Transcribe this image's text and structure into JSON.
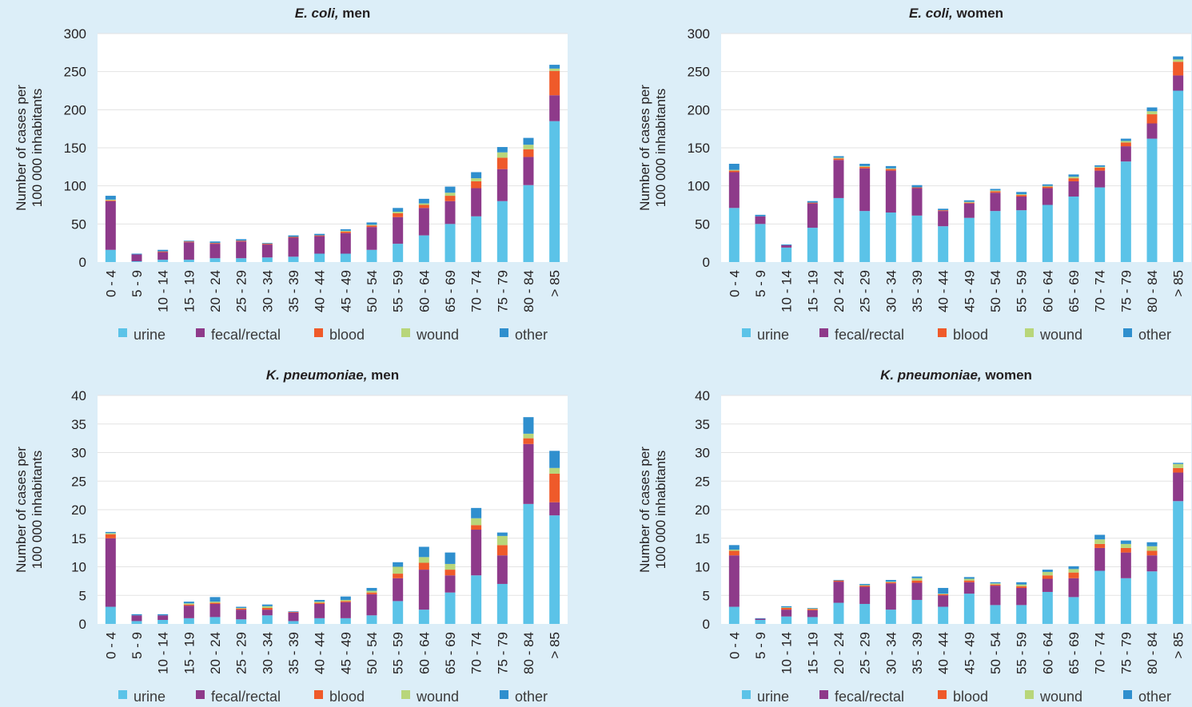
{
  "colors": {
    "urine": "#5bc3e8",
    "fecal_rectal": "#8e3a8a",
    "blood": "#ef5a2a",
    "wound": "#b8d67a",
    "other": "#2f8fce"
  },
  "legend": [
    "urine",
    "fecal/rectal",
    "blood",
    "wound",
    "other"
  ],
  "chart_data": [
    {
      "type": "bar",
      "stacked": true,
      "title_italic": "E. coli,",
      "title_rest": " men",
      "ylabel_line1": "Number of cases per",
      "ylabel_line2": "100 000 inhabitants",
      "ylim": [
        0,
        300
      ],
      "yticks": [
        "0",
        "50",
        "100",
        "150",
        "200",
        "250",
        "300"
      ],
      "categories": [
        "0 - 4",
        "5 - 9",
        "10 - 14",
        "15 - 19",
        "20 - 24",
        "25 - 29",
        "30 - 34",
        "35 - 39",
        "40 - 44",
        "45 - 49",
        "50 - 54",
        "55 - 59",
        "60 - 64",
        "65 - 69",
        "70 - 74",
        "75 - 79",
        "80 - 84",
        "> 85"
      ],
      "series": [
        {
          "name": "urine",
          "values": [
            16,
            1,
            3,
            3,
            5,
            5,
            6,
            7,
            11,
            11,
            16,
            24,
            35,
            50,
            60,
            80,
            101,
            185
          ]
        },
        {
          "name": "fecal/rectal",
          "values": [
            64,
            9,
            10,
            23,
            19,
            22,
            17,
            25,
            23,
            27,
            30,
            35,
            36,
            30,
            37,
            42,
            37,
            34
          ]
        },
        {
          "name": "blood",
          "values": [
            1,
            0,
            1,
            1,
            1,
            1,
            1,
            1,
            1,
            2,
            2,
            5,
            4,
            7,
            9,
            15,
            10,
            32
          ]
        },
        {
          "name": "wound",
          "values": [
            1,
            0,
            0,
            0,
            0,
            0,
            0,
            0,
            0,
            1,
            1,
            2,
            2,
            4,
            4,
            7,
            6,
            3
          ]
        },
        {
          "name": "other",
          "values": [
            5,
            1,
            2,
            1,
            2,
            2,
            1,
            2,
            2,
            2,
            3,
            5,
            6,
            8,
            8,
            7,
            9,
            5
          ]
        }
      ]
    },
    {
      "type": "bar",
      "stacked": true,
      "title_italic": "E. coli,",
      "title_rest": " women",
      "ylabel_line1": "Number of cases per",
      "ylabel_line2": "100 000 inhabitants",
      "ylim": [
        0,
        300
      ],
      "yticks": [
        "0",
        "50",
        "100",
        "150",
        "200",
        "250",
        "300"
      ],
      "categories": [
        "0 - 4",
        "5 - 9",
        "10 - 14",
        "15 - 19",
        "20 - 24",
        "25 - 29",
        "30 - 34",
        "35 - 39",
        "40 - 44",
        "45 - 49",
        "50 - 54",
        "55 - 59",
        "60 - 64",
        "65 - 69",
        "70 - 74",
        "75 - 79",
        "80 - 84",
        "> 85"
      ],
      "series": [
        {
          "name": "urine",
          "values": [
            71,
            50,
            19,
            45,
            84,
            67,
            65,
            61,
            47,
            58,
            67,
            68,
            75,
            86,
            98,
            132,
            162,
            225
          ]
        },
        {
          "name": "fecal/rectal",
          "values": [
            47,
            10,
            3,
            32,
            50,
            56,
            55,
            36,
            20,
            19,
            24,
            18,
            22,
            20,
            22,
            20,
            20,
            20
          ]
        },
        {
          "name": "blood",
          "values": [
            2,
            0,
            0,
            1,
            2,
            2,
            2,
            1,
            1,
            1,
            2,
            2,
            2,
            4,
            4,
            5,
            12,
            18
          ]
        },
        {
          "name": "wound",
          "values": [
            1,
            0,
            0,
            0,
            1,
            1,
            1,
            0,
            0,
            1,
            1,
            1,
            1,
            2,
            1,
            2,
            4,
            3
          ]
        },
        {
          "name": "other",
          "values": [
            8,
            2,
            1,
            2,
            2,
            3,
            3,
            3,
            2,
            2,
            2,
            3,
            2,
            3,
            2,
            3,
            5,
            4
          ]
        }
      ]
    },
    {
      "type": "bar",
      "stacked": true,
      "title_italic": "K. pneumoniae,",
      "title_rest": " men",
      "ylabel_line1": "Number of cases per",
      "ylabel_line2": "100 000 inhabitants",
      "ylim": [
        0,
        40
      ],
      "yticks": [
        "0",
        "5",
        "10",
        "15",
        "20",
        "25",
        "30",
        "35",
        "40"
      ],
      "categories": [
        "0 - 4",
        "5 - 9",
        "10 - 14",
        "15 - 19",
        "20 - 24",
        "25 - 29",
        "30 - 34",
        "35 - 39",
        "40 - 44",
        "45 - 49",
        "50 - 54",
        "55 - 59",
        "60 - 64",
        "65 - 69",
        "70 - 74",
        "75 - 79",
        "80 - 84",
        "> 85"
      ],
      "series": [
        {
          "name": "urine",
          "values": [
            3,
            0.5,
            0.7,
            1,
            1.2,
            0.8,
            1.5,
            0.5,
            1,
            1,
            1.5,
            4,
            2.5,
            5.5,
            8.5,
            7,
            21,
            19
          ]
        },
        {
          "name": "fecal/rectal",
          "values": [
            12,
            1,
            0.8,
            2.2,
            2.3,
            1.7,
            1,
            1.5,
            2.5,
            2.8,
            3.7,
            4,
            7,
            3,
            8,
            5,
            10.5,
            2.3
          ]
        },
        {
          "name": "blood",
          "values": [
            0.7,
            0,
            0,
            0.2,
            0.2,
            0.2,
            0.3,
            0.1,
            0.2,
            0.2,
            0.3,
            0.8,
            1.2,
            1,
            0.8,
            1.8,
            1,
            5
          ]
        },
        {
          "name": "wound",
          "values": [
            0.2,
            0,
            0,
            0.2,
            0.2,
            0.1,
            0.3,
            0,
            0.2,
            0.2,
            0.3,
            1.2,
            1,
            1,
            1.2,
            1.6,
            0.8,
            1
          ]
        },
        {
          "name": "other",
          "values": [
            0.2,
            0.2,
            0.2,
            0.3,
            0.8,
            0.2,
            0.3,
            0.1,
            0.3,
            0.6,
            0.5,
            0.8,
            1.8,
            2,
            1.8,
            0.6,
            2.9,
            3
          ]
        }
      ]
    },
    {
      "type": "bar",
      "stacked": true,
      "title_italic": "K. pneumoniae,",
      "title_rest": " women",
      "ylabel_line1": "Number of cases per",
      "ylabel_line2": "100 000 inhabitants",
      "ylim": [
        0,
        40
      ],
      "yticks": [
        "0",
        "5",
        "10",
        "15",
        "20",
        "25",
        "30",
        "35",
        "40"
      ],
      "categories": [
        "0 - 4",
        "5 - 9",
        "10 - 14",
        "15 - 19",
        "20 - 24",
        "25 - 29",
        "30 - 34",
        "35 - 39",
        "40 - 44",
        "45 - 49",
        "50 - 54",
        "55 - 59",
        "60 - 64",
        "65 - 69",
        "70 - 74",
        "75 - 79",
        "80 - 84",
        "> 85"
      ],
      "series": [
        {
          "name": "urine",
          "values": [
            3,
            0.7,
            1.3,
            1.2,
            3.7,
            3.5,
            2.5,
            4.2,
            3,
            5.3,
            3.3,
            3.3,
            5.6,
            4.7,
            9.3,
            8,
            9.2,
            21.5
          ]
        },
        {
          "name": "fecal/rectal",
          "values": [
            9,
            0.2,
            1.2,
            1.2,
            3.7,
            3,
            4.6,
            3,
            2,
            2,
            3.4,
            3,
            2.3,
            3.3,
            4,
            4.5,
            2.8,
            5
          ]
        },
        {
          "name": "blood",
          "values": [
            0.8,
            0,
            0.3,
            0.2,
            0.2,
            0.2,
            0.2,
            0.4,
            0.2,
            0.3,
            0.2,
            0.3,
            0.6,
            1,
            0.7,
            0.8,
            0.8,
            0.8
          ]
        },
        {
          "name": "wound",
          "values": [
            0.2,
            0,
            0.1,
            0.1,
            0,
            0.1,
            0.1,
            0.4,
            0.1,
            0.3,
            0.2,
            0.3,
            0.6,
            0.6,
            0.8,
            0.7,
            0.8,
            0.7
          ]
        },
        {
          "name": "other",
          "values": [
            0.8,
            0.1,
            0.2,
            0.1,
            0.1,
            0.2,
            0.3,
            0.3,
            1,
            0.3,
            0.2,
            0.4,
            0.4,
            0.5,
            0.8,
            0.6,
            0.7,
            0.2
          ]
        }
      ]
    }
  ]
}
